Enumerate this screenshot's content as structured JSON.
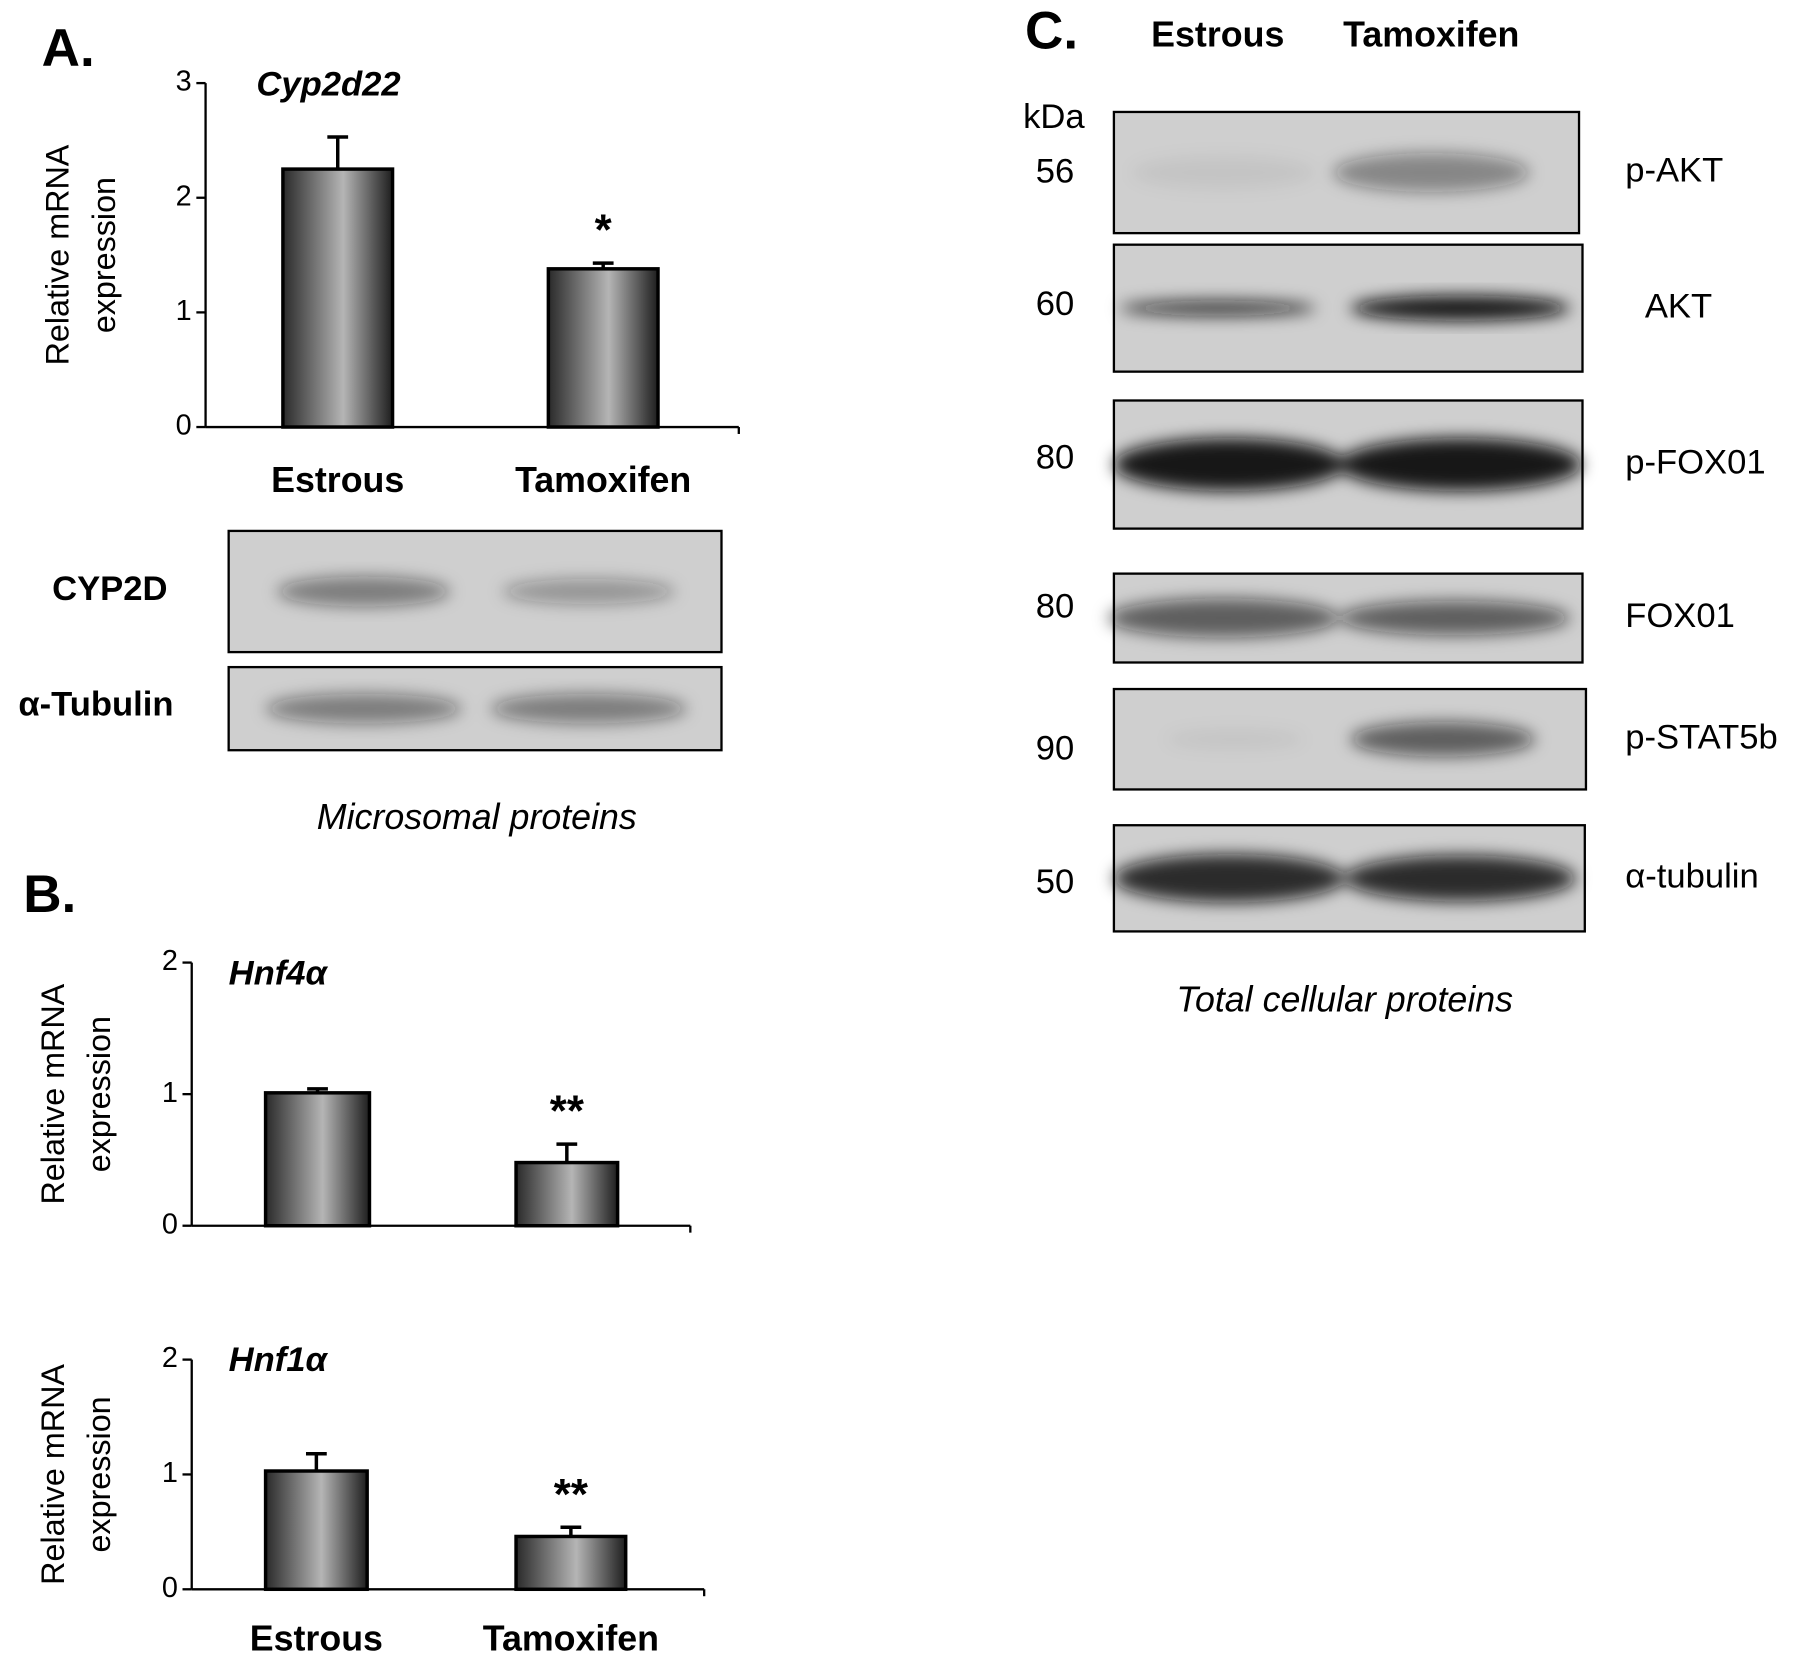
{
  "panels": {
    "A": "A.",
    "B": "B.",
    "C": "C."
  },
  "chart_data": [
    {
      "type": "bar",
      "title": "Cyp2d22",
      "ylabel": [
        "Relative mRNA",
        "expression"
      ],
      "categories": [
        "Estrous",
        "Tamoxifen"
      ],
      "values": [
        2.25,
        1.38
      ],
      "errors": [
        0.28,
        0.05
      ],
      "ylim": [
        0,
        3
      ],
      "yticks": [
        0,
        1,
        2,
        3
      ],
      "annotations": [
        {
          "text": "*",
          "x": 1
        }
      ]
    },
    {
      "type": "bar",
      "title": "Hnf4α",
      "ylabel": [
        "Relative mRNA",
        "expression"
      ],
      "categories": [
        null,
        null
      ],
      "values": [
        1.01,
        0.48
      ],
      "errors": [
        0.03,
        0.14
      ],
      "ylim": [
        0,
        2
      ],
      "yticks": [
        0,
        1,
        2
      ],
      "annotations": [
        {
          "text": "**",
          "x": 1
        }
      ]
    },
    {
      "type": "bar",
      "title": "Hnf1α",
      "ylabel": [
        "Relative mRNA",
        "expression"
      ],
      "categories": [
        "Estrous",
        "Tamoxifen"
      ],
      "values": [
        1.03,
        0.46
      ],
      "errors": [
        0.15,
        0.08
      ],
      "ylim": [
        0,
        2
      ],
      "yticks": [
        0,
        1,
        2
      ],
      "annotations": [
        {
          "text": "**",
          "x": 1
        }
      ]
    }
  ],
  "blot_A": {
    "rows": [
      {
        "label": "CYP2D"
      },
      {
        "label": "α-Tubulin"
      }
    ],
    "caption": "Microsomal proteins"
  },
  "blot_C": {
    "lanes": [
      "Estrous",
      "Tamoxifen"
    ],
    "unit": "kDa",
    "rows": [
      {
        "kda": 56,
        "label": "p-AKT"
      },
      {
        "kda": 60,
        "label": "AKT"
      },
      {
        "kda": 80,
        "label": "p-FOX01"
      },
      {
        "kda": 80,
        "label": "FOX01"
      },
      {
        "kda": 90,
        "label": "p-STAT5b"
      },
      {
        "kda": 50,
        "label": "α-tubulin"
      }
    ],
    "caption": "Total cellular proteins"
  }
}
